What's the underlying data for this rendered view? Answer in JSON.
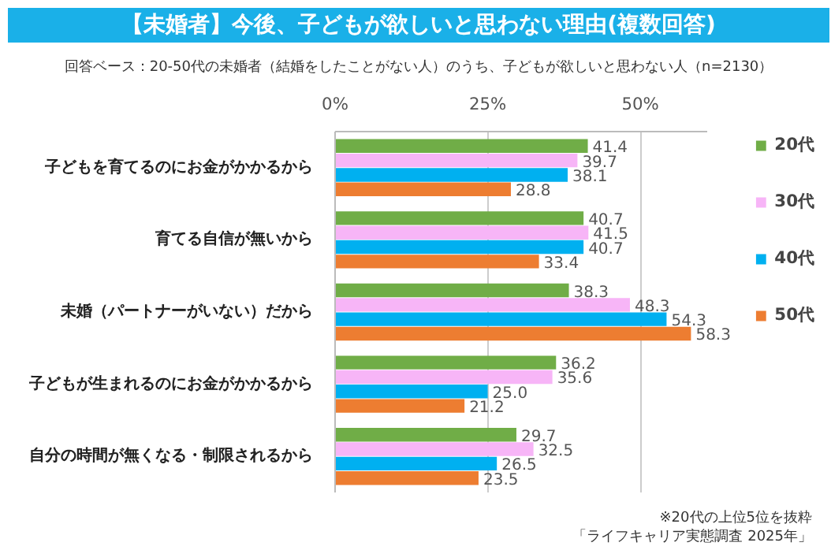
{
  "chart_data": {
    "type": "bar",
    "orientation": "horizontal",
    "title": "【未婚者】今後、子どもが欲しいと思わない理由(複数回答)",
    "subtitle": "回答ベース：20-50代の未婚者（結婚をしたことがない人）のうち、子どもが欲しいと思わない人（n=2130）",
    "categories": [
      "子どもを育てるのにお金がかかるから",
      "育てる自信が無いから",
      "未婚（パートナーがいない）だから",
      "子どもが生まれるのにお金がかかるから",
      "自分の時間が無くなる・制限されるから"
    ],
    "series": [
      {
        "name": "20代",
        "color": "#70ad47",
        "values": [
          41.4,
          40.7,
          38.3,
          36.2,
          29.7
        ],
        "value_labels": [
          "41.4",
          "40.7",
          "38.3",
          "36.2",
          "29.7"
        ]
      },
      {
        "name": "30代",
        "color": "#f7b5f7",
        "values": [
          39.7,
          41.5,
          48.3,
          35.6,
          32.5
        ],
        "value_labels": [
          "39.7",
          "41.5",
          "48.3",
          "35.6",
          "32.5"
        ]
      },
      {
        "name": "40代",
        "color": "#00b0f0",
        "values": [
          38.1,
          40.7,
          54.3,
          25.0,
          26.5
        ],
        "value_labels": [
          "38.1",
          "40.7",
          "54.3",
          "25.0",
          "26.5"
        ]
      },
      {
        "name": "50代",
        "color": "#ed7d31",
        "values": [
          28.8,
          33.4,
          58.3,
          21.2,
          23.5
        ],
        "value_labels": [
          "28.8",
          "33.4",
          "58.3",
          "21.2",
          "23.5"
        ]
      }
    ],
    "xlim": [
      0,
      61
    ],
    "xticks": [
      {
        "value": 0,
        "label": "0%"
      },
      {
        "value": 25,
        "label": "25%"
      },
      {
        "value": 50,
        "label": "50%"
      }
    ],
    "grid": "x",
    "legend": "right",
    "annotations": [
      "※20代の上位5位を抜粋",
      "「ライフキャリア実態調査 2025年」"
    ]
  }
}
